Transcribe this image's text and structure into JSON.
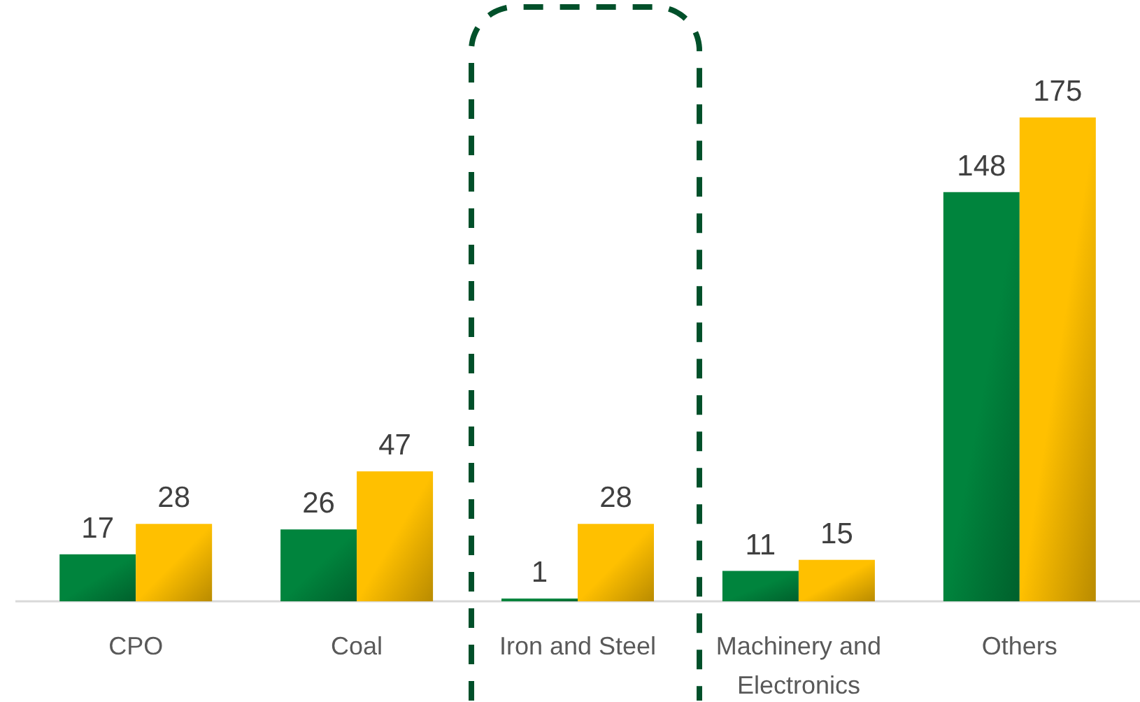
{
  "chart_data": {
    "type": "bar",
    "categories": [
      "CPO",
      "Coal",
      "Iron and Steel",
      "Machinery and Electronics",
      "Others"
    ],
    "series": [
      {
        "color": "#00843d",
        "values": [
          17,
          26,
          1,
          11,
          148
        ]
      },
      {
        "color": "#ffc000",
        "values": [
          28,
          47,
          28,
          15,
          175
        ]
      }
    ],
    "data_labels": true
  }
}
